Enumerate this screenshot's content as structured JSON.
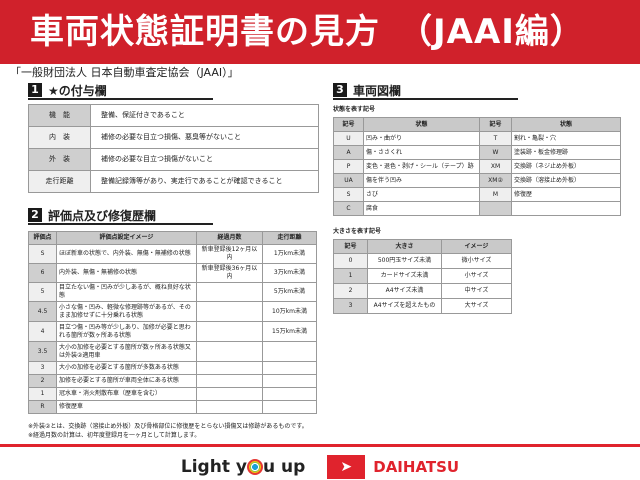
{
  "header": {
    "title": "車両状態証明書の見方　（JAAI編）"
  },
  "subtitle": "「一般財団法人 日本自動車査定協会（JAAI）」",
  "section1": {
    "num": "1",
    "title": "★の付与欄",
    "rows": [
      {
        "k": "機　能",
        "v": "整備、保証付きであること"
      },
      {
        "k": "内　装",
        "v": "補修の必要な目立つ損傷、悪臭等がないこと"
      },
      {
        "k": "外　装",
        "v": "補修の必要な目立つ損傷がないこと"
      },
      {
        "k": "走行距離",
        "v": "整備記録簿等があり、実走行であることが確認できること"
      }
    ]
  },
  "section2": {
    "num": "2",
    "title": "評価点及び修復歴欄",
    "headers": [
      "評価点",
      "評価点設定イメージ",
      "経過月数",
      "走行距離"
    ],
    "rows": [
      [
        "S",
        "ほぼ新車の状態で、内外装、無傷・無補修の状態",
        "新車登録後12ヶ月以内",
        "1万km未満"
      ],
      [
        "6",
        "内外装、無傷・無補修の状態",
        "新車登録後36ヶ月以内",
        "3万km未満"
      ],
      [
        "5",
        "目立たない傷・凹みが少しあるが、概ね良好な状態",
        "",
        "5万km未満"
      ],
      [
        "4.5",
        "小さな傷・凹み、軽微な修理跡等があるが、そのまま加修せずに十分乗れる状態",
        "",
        "10万km未満"
      ],
      [
        "4",
        "目立つ傷・凹み等が少しあり、加修が必要と思われる箇所が数ヶ所ある状態",
        "",
        "15万km未満"
      ],
      [
        "3.5",
        "大小の加修を必要とする箇所が数ヶ所ある状態又は外装②適用車",
        "",
        ""
      ],
      [
        "3",
        "大小の加修を必要とする箇所が多数ある状態",
        "",
        ""
      ],
      [
        "2",
        "加修を必要とする箇所が車両全体にある状態",
        "",
        ""
      ],
      [
        "1",
        "冠水車・消火剤散布車（歴車を含む）",
        "",
        ""
      ],
      [
        "R",
        "修復歴車",
        "",
        ""
      ]
    ]
  },
  "section3": {
    "num": "3",
    "title": "車両図欄",
    "state_label": "状態を表す記号",
    "state_headers": [
      "記号",
      "状態",
      "記号",
      "状態"
    ],
    "state_rows": [
      [
        "U",
        "凹み・曲がり",
        "T",
        "割れ・亀裂・穴"
      ],
      [
        "A",
        "傷・ささくれ",
        "W",
        "塗装跡・板金修理跡"
      ],
      [
        "P",
        "変色・退色・剥げ・シール（テープ）跡",
        "XM",
        "交換跡（ネジ止め外板）"
      ],
      [
        "UA",
        "傷を伴う凹み",
        "XM②",
        "交換跡（溶接止め外板）"
      ],
      [
        "S",
        "さび",
        "M",
        "修復歴"
      ],
      [
        "C",
        "腐食",
        "",
        ""
      ]
    ],
    "size_label": "大きさを表す記号",
    "size_headers": [
      "記号",
      "大きさ",
      "イメージ"
    ],
    "size_rows": [
      [
        "0",
        "500円玉サイズ未満",
        "微小サイズ"
      ],
      [
        "1",
        "カードサイズ未満",
        "小サイズ"
      ],
      [
        "2",
        "A4サイズ未満",
        "中サイズ"
      ],
      [
        "3",
        "A4サイズを超えたもの",
        "大サイズ"
      ]
    ]
  },
  "notes": [
    "※外装②とは、交換跡（溶接止め外板）及び骨格部位に修復歴をとらない損傷又は修跡があるものです。",
    "※経過月数の計算は、初年度登録月を一ヶ月として計算します。"
  ],
  "footer": {
    "slogan_a": "Light y",
    "slogan_b": "u up",
    "brand": "DAIHATSU"
  },
  "colors": {
    "header_red": "#d0212b",
    "brand_red": "#e0232d"
  }
}
